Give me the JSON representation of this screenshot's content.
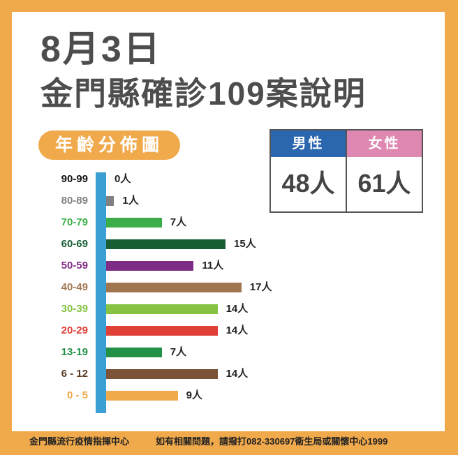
{
  "header": {
    "date": "8月3日",
    "title": "金門縣確診109案說明"
  },
  "section_label": "年齡分佈圖",
  "gender": {
    "male": {
      "label": "男性",
      "value": "48人",
      "color": "#2b67ae"
    },
    "female": {
      "label": "女性",
      "value": "61人",
      "color": "#de87b0"
    }
  },
  "chart_data": {
    "type": "bar",
    "orientation": "horizontal",
    "title": "年齡分佈圖",
    "categories": [
      "90-99",
      "80-89",
      "70-79",
      "60-69",
      "50-59",
      "40-49",
      "30-39",
      "20-29",
      "13-19",
      "6-12",
      "0-5"
    ],
    "values": [
      0,
      1,
      7,
      15,
      11,
      17,
      14,
      14,
      7,
      14,
      9
    ],
    "value_labels": [
      "0人",
      "1人",
      "7人",
      "15人",
      "11人",
      "17人",
      "14人",
      "14人",
      "7人",
      "14人",
      "9人"
    ],
    "category_labels": [
      "90-99",
      "80-89",
      "70-79",
      "60-69",
      "50-59",
      "40-49",
      "30-39",
      "20-29",
      "13-19",
      "6 - 12",
      "0  -  5"
    ],
    "colors": [
      "#111111",
      "#808080",
      "#3cae49",
      "#175e35",
      "#7f2c86",
      "#a07651",
      "#86c342",
      "#df3f36",
      "#229148",
      "#7b5336",
      "#f0a94b"
    ],
    "label_colors": [
      "#111111",
      "#808080",
      "#3cae49",
      "#175e35",
      "#7f2c86",
      "#a07651",
      "#86c342",
      "#df3f36",
      "#229148",
      "#5a3a22",
      "#f0a94b"
    ],
    "axis_color": "#3aa0d3",
    "unit": "人",
    "xlim": [
      0,
      17
    ],
    "grid": false,
    "legend": "none",
    "total": 109
  },
  "footer": {
    "org": "金門縣流行疫情指揮中心",
    "contact": "如有相關問題，請撥打082-330697衛生局或關懷中心1999"
  }
}
